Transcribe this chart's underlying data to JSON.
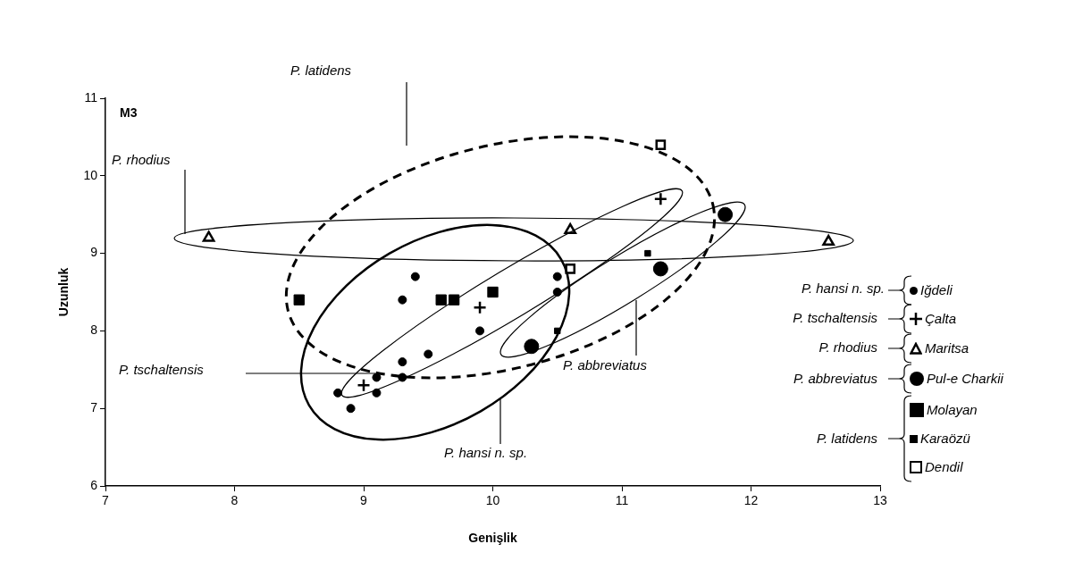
{
  "chart_data": {
    "type": "scatter",
    "xlabel": "Genişlik",
    "ylabel": "Uzunluk",
    "xlim": [
      7,
      13
    ],
    "xticks": [
      7,
      8,
      9,
      10,
      11,
      12,
      13
    ],
    "ylim": [
      6,
      11
    ],
    "yticks": [
      6,
      7,
      8,
      9,
      10,
      11
    ],
    "grid": false,
    "legend": "right",
    "annotations": [
      "M3",
      "P. rhodius",
      "P. latidens",
      "P. tschaltensis",
      "P. abbreviatus",
      "P. hansi n. sp.",
      "P. hansi n. sp.",
      "P. tschaltensis",
      "P. rhodius",
      "P. abbreviatus",
      "P. latidens"
    ],
    "series": [
      {
        "name": "Iğdeli",
        "color": "#000000",
        "marker": "circle",
        "x": [
          8.8,
          8.9,
          9.1,
          9.1,
          9.3,
          9.3,
          9.3,
          9.4,
          9.5,
          9.9,
          10.5,
          10.5
        ],
        "values": [
          7.2,
          7.0,
          7.2,
          7.4,
          7.6,
          7.4,
          8.4,
          8.7,
          7.7,
          8.0,
          8.7,
          8.5
        ]
      },
      {
        "name": "Çalta",
        "color": "#000000",
        "marker": "cross",
        "x": [
          9.0,
          9.9,
          11.3
        ],
        "values": [
          7.3,
          8.3,
          9.7
        ]
      },
      {
        "name": "Maritsa",
        "color": "#000000",
        "marker": "triangle",
        "x": [
          7.8,
          10.6,
          12.6
        ],
        "values": [
          9.2,
          9.3,
          9.15
        ]
      },
      {
        "name": "Pul-e Charkii",
        "color": "#000000",
        "marker": "circle",
        "x": [
          10.3,
          11.8,
          11.3
        ],
        "values": [
          7.8,
          9.5,
          8.8
        ]
      },
      {
        "name": "Molayan",
        "color": "#000000",
        "marker": "square",
        "x": [
          8.5,
          9.6,
          9.7,
          10.0
        ],
        "values": [
          8.4,
          8.4,
          8.4,
          8.5
        ]
      },
      {
        "name": "Karaözü",
        "color": "#000000",
        "marker": "square",
        "x": [
          11.2,
          10.5
        ],
        "values": [
          9.0,
          8.0
        ]
      },
      {
        "name": "Dendil",
        "color": "#000000",
        "marker": "square",
        "x": [
          11.3,
          10.6
        ],
        "values": [
          10.4,
          8.8
        ]
      }
    ]
  }
}
